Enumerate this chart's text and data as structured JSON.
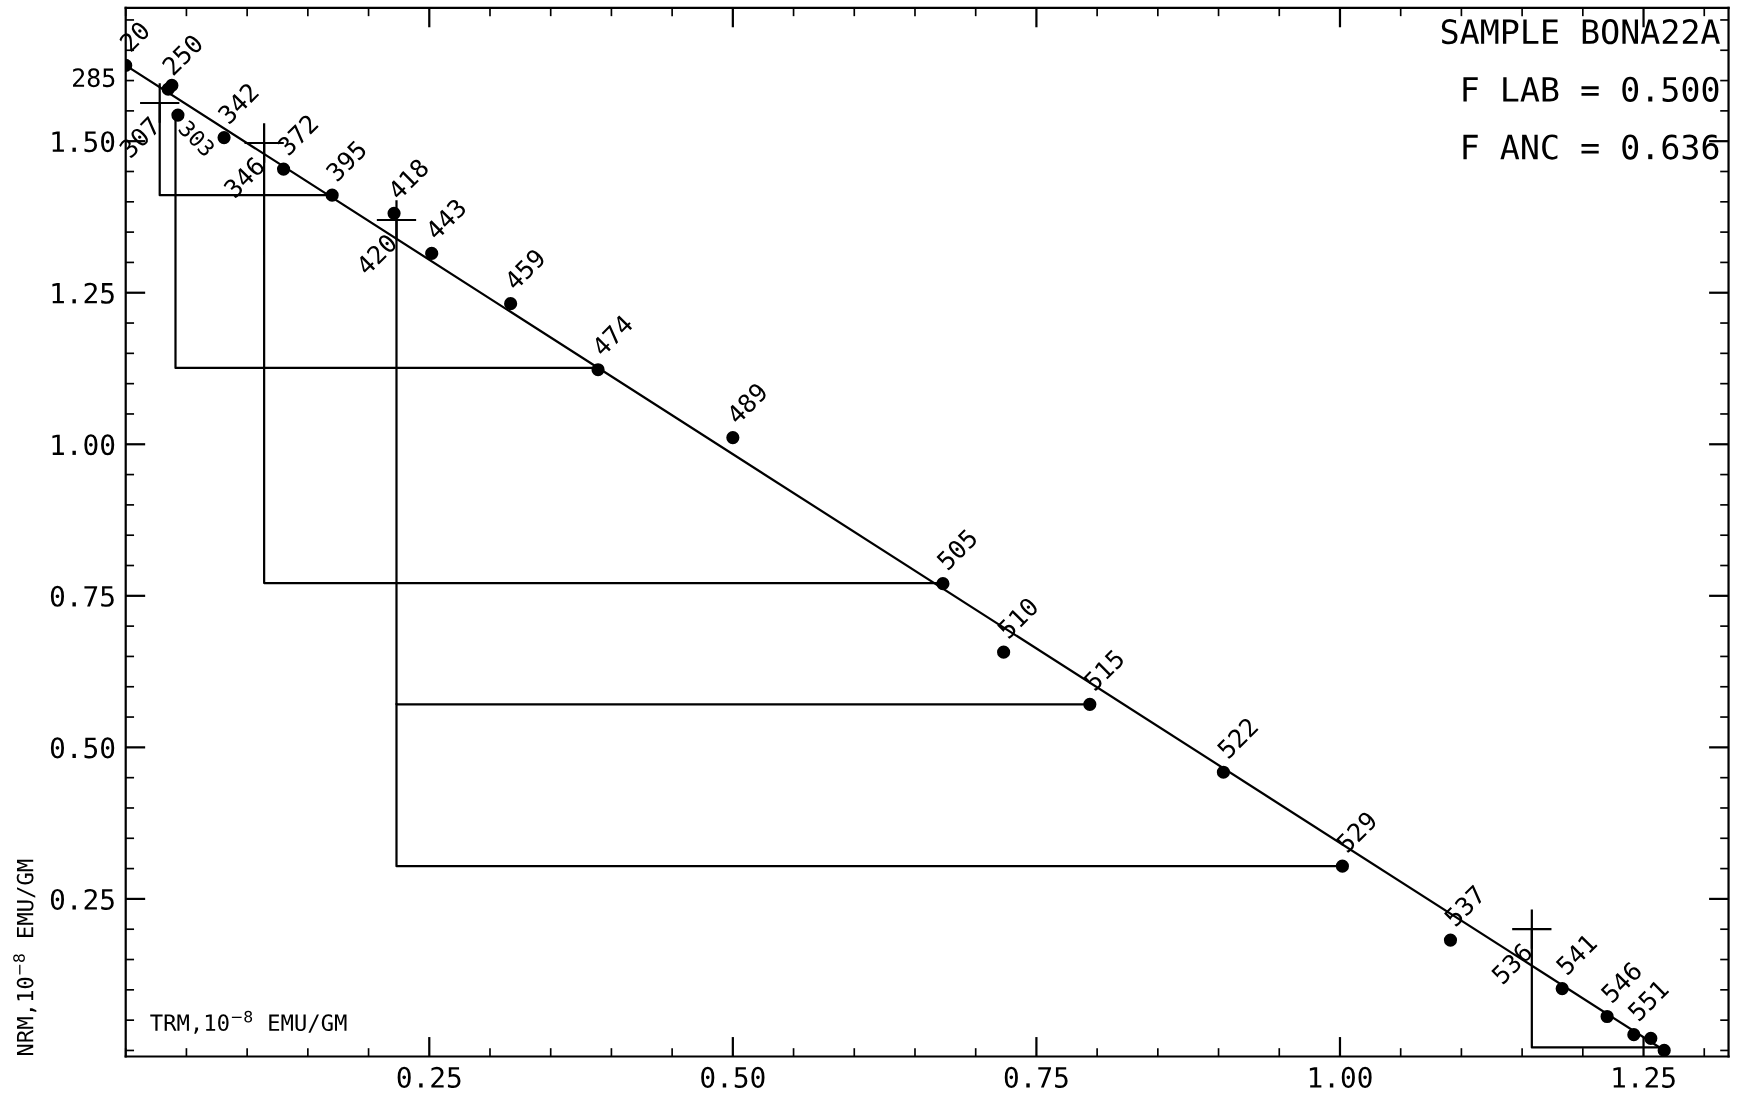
{
  "chart_data": {
    "type": "scatter",
    "title": "SAMPLE BONA22A",
    "xlabel": "TRM,10$^{−8}$ EMU/GM",
    "ylabel": "NRM,10$^{−8}$ EMU/GM",
    "xlim": [
      0,
      1.32
    ],
    "ylim": [
      -0.01,
      1.72
    ],
    "xticks": [
      {
        "value": 0.25,
        "label": "0.25"
      },
      {
        "value": 0.5,
        "label": "0.50"
      },
      {
        "value": 0.75,
        "label": "0.75"
      },
      {
        "value": 1.0,
        "label": "1.00"
      },
      {
        "value": 1.25,
        "label": "1.25"
      }
    ],
    "yticks": [
      {
        "value": 0.25,
        "label": "0.25"
      },
      {
        "value": 0.5,
        "label": "0.50"
      },
      {
        "value": 0.75,
        "label": "0.75"
      },
      {
        "value": 1.0,
        "label": "1.00"
      },
      {
        "value": 1.25,
        "label": "1.25"
      },
      {
        "value": 1.5,
        "label": "1.50"
      }
    ],
    "grid": false,
    "series": [
      {
        "type": "line",
        "color": "#000000",
        "marker": "none",
        "x": [
          0.0,
          1.267
        ],
        "values": [
          1.625,
          0.0
        ]
      },
      {
        "type": "line",
        "color": "#000000",
        "marker": "none",
        "x": [
          0.17,
          0.028,
          0.028
        ],
        "values": [
          1.411,
          1.411,
          1.563
        ]
      },
      {
        "type": "line",
        "color": "#000000",
        "marker": "none",
        "x": [
          0.389,
          0.041,
          0.041
        ],
        "values": [
          1.126,
          1.126,
          1.543
        ]
      },
      {
        "type": "line",
        "color": "#000000",
        "marker": "none",
        "x": [
          0.673,
          0.114,
          0.114
        ],
        "values": [
          0.771,
          0.771,
          1.497
        ]
      },
      {
        "type": "line",
        "color": "#000000",
        "marker": "none",
        "x": [
          0.794,
          0.223,
          0.223
        ],
        "values": [
          0.571,
          0.571,
          1.37
        ]
      },
      {
        "type": "line",
        "color": "#000000",
        "marker": "none",
        "x": [
          1.002,
          0.223,
          0.223
        ],
        "values": [
          0.304,
          0.304,
          0.571
        ]
      },
      {
        "type": "line",
        "color": "#000000",
        "marker": "none",
        "x": [
          1.267,
          1.158,
          1.158
        ],
        "values": [
          0.005,
          0.005,
          0.2
        ]
      },
      {
        "color": "#000000",
        "marker": "circle",
        "x": [
          0.0,
          0.035,
          0.038,
          0.043,
          0.081,
          0.13,
          0.17,
          0.221,
          0.252,
          0.317,
          0.389,
          0.5,
          0.673,
          0.723,
          0.794,
          0.904,
          1.002,
          1.091,
          1.183,
          1.22,
          1.242,
          1.256,
          1.267
        ],
        "values": [
          1.625,
          1.586,
          1.592,
          1.543,
          1.506,
          1.454,
          1.411,
          1.381,
          1.315,
          1.232,
          1.123,
          1.011,
          0.77,
          0.657,
          0.571,
          0.459,
          0.304,
          0.182,
          0.102,
          0.056,
          0.026,
          0.02,
          0.0
        ]
      },
      {
        "color": "#000000",
        "marker": "cross",
        "x": [
          0.028,
          0.114,
          0.223,
          1.158
        ],
        "values": [
          1.563,
          1.497,
          1.37,
          0.2
        ]
      }
    ],
    "annotations": [
      "F LAB = 0.500",
      "F ANC = 0.636",
      {
        "text": "20",
        "x": 0.0,
        "y": 1.625
      },
      {
        "text": "250",
        "x": 0.035,
        "y": 1.586
      },
      {
        "text": "285",
        "x": 0.038,
        "y": 1.592
      },
      {
        "text": "303",
        "x": 0.043,
        "y": 1.543
      },
      {
        "text": "342",
        "x": 0.081,
        "y": 1.506
      },
      {
        "text": "372",
        "x": 0.13,
        "y": 1.454
      },
      {
        "text": "395",
        "x": 0.17,
        "y": 1.411
      },
      {
        "text": "418",
        "x": 0.221,
        "y": 1.381
      },
      {
        "text": "443",
        "x": 0.252,
        "y": 1.315
      },
      {
        "text": "459",
        "x": 0.317,
        "y": 1.232
      },
      {
        "text": "474",
        "x": 0.389,
        "y": 1.123
      },
      {
        "text": "489",
        "x": 0.5,
        "y": 1.011
      },
      {
        "text": "505",
        "x": 0.673,
        "y": 0.77
      },
      {
        "text": "510",
        "x": 0.723,
        "y": 0.657
      },
      {
        "text": "515",
        "x": 0.794,
        "y": 0.571
      },
      {
        "text": "522",
        "x": 0.904,
        "y": 0.459
      },
      {
        "text": "529",
        "x": 1.002,
        "y": 0.304
      },
      {
        "text": "537",
        "x": 1.091,
        "y": 0.182
      },
      {
        "text": "541",
        "x": 1.183,
        "y": 0.102
      },
      {
        "text": "546",
        "x": 1.22,
        "y": 0.056
      },
      {
        "text": "551",
        "x": 1.242,
        "y": 0.026
      },
      {
        "text": "307",
        "x": 0.028,
        "y": 1.563
      },
      {
        "text": "346",
        "x": 0.114,
        "y": 1.497
      },
      {
        "text": "420",
        "x": 0.223,
        "y": 1.37
      },
      {
        "text": "536",
        "x": 1.158,
        "y": 0.2
      }
    ]
  }
}
